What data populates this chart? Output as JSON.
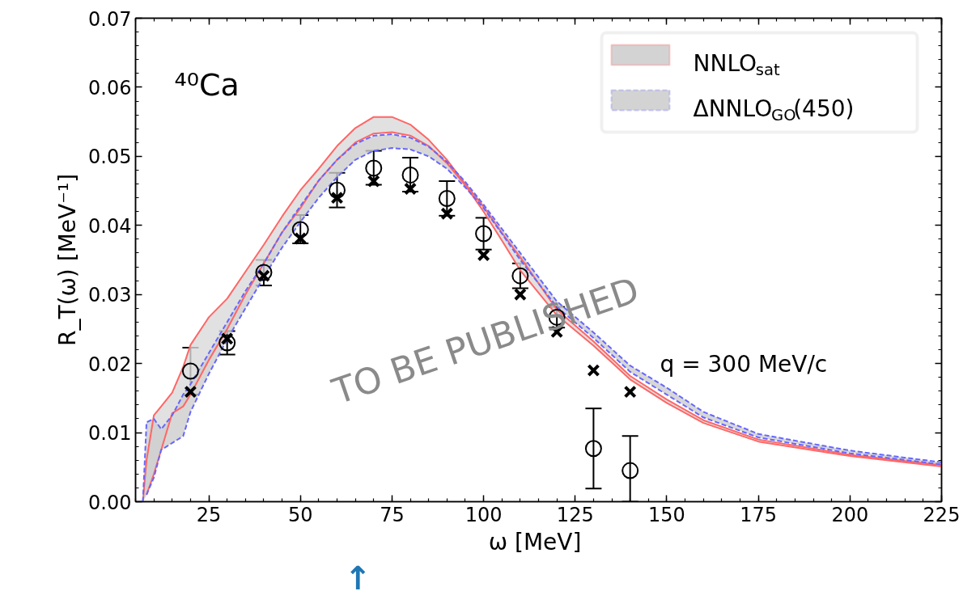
{
  "chart_data": {
    "type": "line",
    "xlabel": "ω  [MeV]",
    "ylabel": "R_T(ω) [MeV⁻¹]",
    "annotations": [
      "⁴⁰Ca",
      "q = 300 MeV/c",
      "TO BE PUBLISHED",
      "↑"
    ],
    "x": [
      7,
      8,
      10,
      12,
      15,
      18,
      20,
      25,
      30,
      35,
      40,
      45,
      50,
      55,
      60,
      65,
      70,
      75,
      80,
      85,
      90,
      95,
      100,
      105,
      110,
      120,
      130,
      140,
      150,
      160,
      175,
      200,
      225
    ],
    "series": [
      {
        "name": "NNLO$_{sat}$",
        "color": "#ff6666",
        "line_style": "solid",
        "values": [
          0.0,
          0.006,
          0.0125,
          0.0138,
          0.0158,
          0.0195,
          0.0227,
          0.0267,
          0.0294,
          0.0333,
          0.0372,
          0.0413,
          0.0451,
          0.0482,
          0.0515,
          0.0541,
          0.0557,
          0.0557,
          0.0546,
          0.0524,
          0.0495,
          0.046,
          0.0427,
          0.0389,
          0.0354,
          0.0278,
          0.0232,
          0.0182,
          0.0148,
          0.0118,
          0.009,
          0.0068,
          0.0053
        ],
        "upper": [
          0.0,
          0.006,
          0.0125,
          0.0138,
          0.0158,
          0.0195,
          0.0227,
          0.0267,
          0.0294,
          0.0333,
          0.0372,
          0.0413,
          0.0451,
          0.0482,
          0.0515,
          0.0541,
          0.0557,
          0.0557,
          0.0546,
          0.0524,
          0.0495,
          0.046,
          0.0427,
          0.0389,
          0.0354,
          0.0278,
          0.0232,
          0.0182,
          0.0148,
          0.0118,
          0.009,
          0.0068,
          0.0053
        ],
        "lower": [
          0.0,
          0.001,
          0.004,
          0.0075,
          0.0128,
          0.0138,
          0.0155,
          0.0205,
          0.025,
          0.03,
          0.0345,
          0.039,
          0.0425,
          0.0465,
          0.0495,
          0.052,
          0.0533,
          0.0535,
          0.053,
          0.0515,
          0.049,
          0.0458,
          0.042,
          0.0378,
          0.0335,
          0.027,
          0.0226,
          0.0177,
          0.0143,
          0.0114,
          0.0087,
          0.0066,
          0.0051
        ]
      },
      {
        "color": "#ff6666",
        "line_style": "solid",
        "x": [
          8,
          10,
          12,
          15,
          18,
          20,
          25,
          30,
          35,
          40,
          45,
          50,
          55,
          60,
          65,
          70,
          75,
          80,
          85,
          90,
          95,
          100,
          105,
          110,
          120,
          130,
          140,
          150,
          160,
          175,
          200,
          225
        ],
        "values": [
          0.001,
          0.004,
          0.0075,
          0.0128,
          0.0138,
          0.0155,
          0.0205,
          0.025,
          0.03,
          0.0345,
          0.039,
          0.0425,
          0.0465,
          0.0495,
          0.052,
          0.0533,
          0.0535,
          0.053,
          0.0515,
          0.049,
          0.0458,
          0.042,
          0.0378,
          0.0335,
          0.027,
          0.0226,
          0.0177,
          0.0143,
          0.0114,
          0.0087,
          0.0066,
          0.0051
        ]
      },
      {
        "color": "#6666ff",
        "line_style": "dashed",
        "x": [
          8,
          10,
          12,
          15,
          18,
          20,
          25,
          30,
          35,
          40,
          45,
          50,
          55,
          60,
          65,
          70,
          75,
          80,
          85,
          90,
          95,
          100,
          105,
          110,
          120,
          130,
          140,
          150,
          160,
          175,
          200,
          225
        ],
        "values": [
          0.001,
          0.0035,
          0.0075,
          0.0085,
          0.0095,
          0.013,
          0.0185,
          0.0235,
          0.028,
          0.0325,
          0.0368,
          0.0405,
          0.044,
          0.047,
          0.0495,
          0.0508,
          0.0512,
          0.051,
          0.05,
          0.0482,
          0.0455,
          0.0425,
          0.0388,
          0.035,
          0.0282,
          0.0237,
          0.0188,
          0.0155,
          0.0122,
          0.0093,
          0.007,
          0.0054
        ]
      },
      {
        "name": "ΔNNLO$_{GO}$(450)",
        "color": "#6666ff",
        "line_style": "dashed",
        "values": [
          0.0,
          0.0115,
          0.012,
          0.0105,
          0.0125,
          0.0155,
          0.017,
          0.0215,
          0.026,
          0.0305,
          0.0345,
          0.039,
          0.0428,
          0.0465,
          0.0495,
          0.0518,
          0.053,
          0.0532,
          0.0527,
          0.0514,
          0.0492,
          0.0463,
          0.043,
          0.0395,
          0.036,
          0.029,
          0.0245,
          0.0197,
          0.0165,
          0.013,
          0.0098,
          0.0074,
          0.0057
        ],
        "upper": [
          0.0,
          0.0115,
          0.012,
          0.0105,
          0.0125,
          0.0155,
          0.017,
          0.0215,
          0.026,
          0.0305,
          0.0345,
          0.039,
          0.0428,
          0.0465,
          0.0495,
          0.0518,
          0.053,
          0.0532,
          0.0527,
          0.0514,
          0.0492,
          0.0463,
          0.043,
          0.0395,
          0.036,
          0.029,
          0.0245,
          0.0197,
          0.0165,
          0.013,
          0.0098,
          0.0074,
          0.0057
        ],
        "lower": [
          0.0,
          0.001,
          0.0035,
          0.0075,
          0.0085,
          0.0095,
          0.013,
          0.0185,
          0.0235,
          0.028,
          0.0325,
          0.0368,
          0.0405,
          0.044,
          0.047,
          0.0495,
          0.0508,
          0.0512,
          0.051,
          0.05,
          0.0482,
          0.0455,
          0.0425,
          0.0388,
          0.035,
          0.0282,
          0.0237,
          0.0188,
          0.0155,
          0.0122,
          0.0093,
          0.007,
          0.0054
        ]
      },
      {
        "type": "scatter",
        "marker": "circle",
        "color": "#000000",
        "x": [
          20,
          30,
          40,
          50,
          60,
          70,
          80,
          90,
          100,
          110,
          120,
          130,
          140
        ],
        "values": [
          0.0189,
          0.023,
          0.0332,
          0.0394,
          0.0451,
          0.0483,
          0.0473,
          0.0439,
          0.0388,
          0.0327,
          0.0267,
          0.0077,
          0.0045
        ],
        "errors": [
          [
            0.0155,
            0.0223
          ],
          [
            0.0213,
            0.0247
          ],
          [
            0.0313,
            0.035
          ],
          [
            0.0374,
            0.0415
          ],
          [
            0.0426,
            0.0476
          ],
          [
            0.0459,
            0.0508
          ],
          [
            0.0449,
            0.0498
          ],
          [
            0.0414,
            0.0464
          ],
          [
            0.0365,
            0.0411
          ],
          [
            0.0309,
            0.0345
          ],
          [
            0.0252,
            0.0282
          ],
          [
            0.0019,
            0.0135
          ],
          [
            0.0,
            0.0095
          ]
        ]
      },
      {
        "type": "scatter",
        "marker": "cross",
        "color": "#000000",
        "x": [
          20,
          30,
          40,
          50,
          60,
          70,
          80,
          90,
          100,
          110,
          120,
          130,
          140
        ],
        "values": [
          0.0159,
          0.0236,
          0.0327,
          0.0381,
          0.044,
          0.0464,
          0.0453,
          0.0417,
          0.0357,
          0.03,
          0.0246,
          0.019,
          0.0159
        ]
      }
    ],
    "xlim": [
      5,
      225
    ],
    "ylim": [
      0,
      0.07
    ],
    "xticks": [
      25,
      50,
      75,
      100,
      125,
      150,
      175,
      200,
      225
    ],
    "yticks": [
      {
        "value": 0,
        "label": "0.00"
      },
      {
        "value": 0.01,
        "label": "0.01"
      },
      {
        "value": 0.02,
        "label": "0.02"
      },
      {
        "value": 0.03,
        "label": "0.03"
      },
      {
        "value": 0.04,
        "label": "0.04"
      },
      {
        "value": 0.05,
        "label": "0.05"
      },
      {
        "value": 0.06,
        "label": "0.06"
      },
      {
        "value": 0.07,
        "label": "0.07"
      }
    ],
    "grid": false,
    "legend": "top right"
  }
}
